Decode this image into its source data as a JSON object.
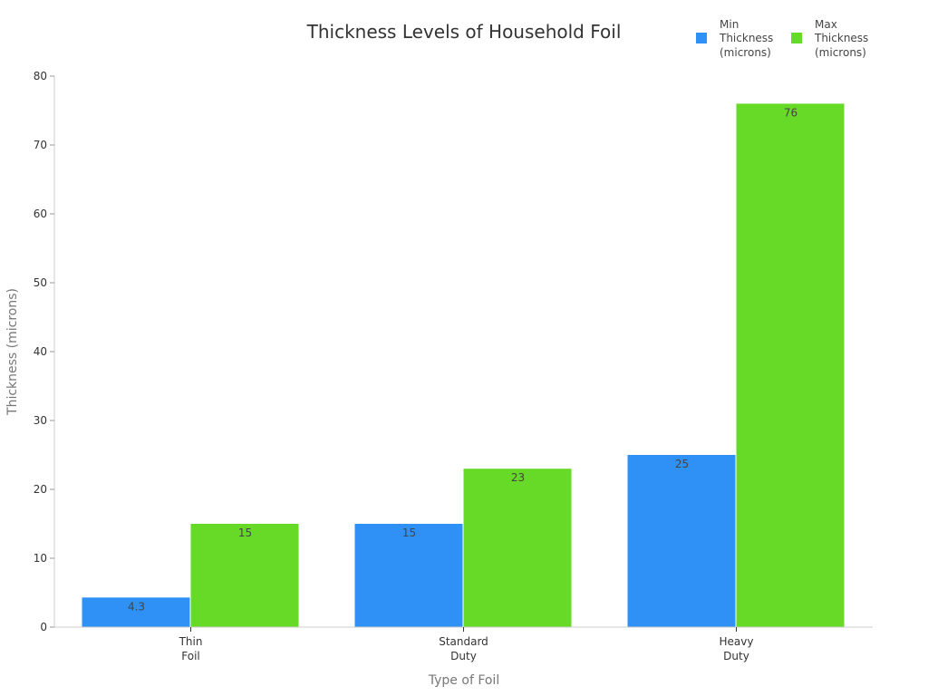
{
  "chart_data": {
    "type": "bar",
    "title": "Thickness Levels of Household Foil",
    "xlabel": "Type of Foil",
    "ylabel": "Thickness (microns)",
    "categories": [
      "Thin Foil",
      "Standard Duty",
      "Heavy Duty"
    ],
    "category_lines": [
      [
        "Thin",
        "Foil"
      ],
      [
        "Standard",
        "Duty"
      ],
      [
        "Heavy",
        "Duty"
      ]
    ],
    "series": [
      {
        "name": "Min Thickness (microns)",
        "legend_lines": [
          "Min",
          "Thickness",
          "(microns)"
        ],
        "color": "#2F91F5",
        "values": [
          4.3,
          15,
          25
        ],
        "labels": [
          "4.3",
          "15",
          "25"
        ]
      },
      {
        "name": "Max Thickness (microns)",
        "legend_lines": [
          "Max",
          "Thickness",
          "(microns)"
        ],
        "color": "#66DA26",
        "values": [
          15,
          23,
          76
        ],
        "labels": [
          "15",
          "23",
          "76"
        ]
      }
    ],
    "ylim": [
      0,
      80
    ],
    "yticks": [
      0,
      10,
      20,
      30,
      40,
      50,
      60,
      70,
      80
    ],
    "grid": false,
    "legend_position": "top-right"
  }
}
